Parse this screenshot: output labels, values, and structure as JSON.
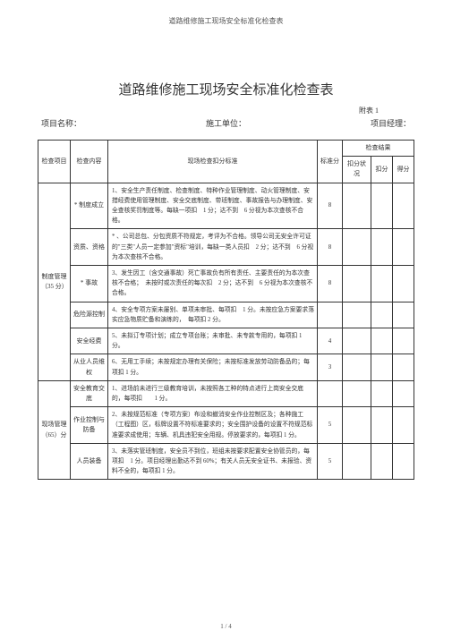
{
  "header_small": "道路维修施工现场安全标准化检查表",
  "main_title": "道路维修施工现场安全标准化检查表",
  "appendix": "附表 1",
  "info": {
    "project_label": "项目名称：",
    "unit_label": "施工单位：",
    "manager_label": "项目经理："
  },
  "thead": {
    "item": "检查项目",
    "content": "检查内容",
    "standard": "现场检查扣分标准",
    "std_score": "标准分",
    "result": "检查结果",
    "status": "扣分状况",
    "deduct": "扣分",
    "get": "得分"
  },
  "section1": {
    "title": "制度管理（35 分）",
    "rows": [
      {
        "content": "*\n制度成立",
        "criteria": "1、安全生产责任制度、检查制度、特种作业管理制度、动火管理制度、安措经费使用管理制度、安全交底制度、带班制度、事故报告与办理制度、安全查核奖罚制度等。每缺一项扣　1 分；达不到　6 分视为本次查核不合格。",
        "score": "8"
      },
      {
        "content": "资质、资格",
        "criteria": "* 、公司总包、分包资质不符规定，考评为不合格。领导公司无安全许可证的\"三类\"人员一定参加\"资标\"培训，每缺一类人员扣　2 分；达不到　6 分视为本次查核不合格。",
        "score": "8"
      },
      {
        "content": "*\n事故",
        "criteria": "3、发生因工（含交通事故）死亡事故负有所有责任、主要责任的为本次查核不合格；　未按时或次责任的每次扣　2 分；达不到　6 分视为本次查核不合格。",
        "score": "8"
      },
      {
        "content": "危险源控制",
        "criteria": "4、安全专项方案未屡别、单项未审批、每项扣　1 分。未按应急方案要求落实应急物质贮备和演练的，　每项扣 2 分。",
        "score": ""
      },
      {
        "content": "安全经费",
        "criteria": "5、未拟订专项计划；成立专项台账；未审批、未专款专用的，每项扣 1 分。",
        "score": "4"
      },
      {
        "content": "从业人员维权",
        "criteria": "6、无用工手续；未按规定办理有关保险；未按标准发放劳动防备品的；每项扣 1 分。",
        "score": "3"
      }
    ]
  },
  "section2": {
    "title": "现场管理（65）分",
    "rows": [
      {
        "content": "安全教育交底",
        "criteria": "1、进场前未进行三级教育培训，未按照各工种的特点进行上岗安全交底的，每项扣　　1 分。",
        "score": ""
      },
      {
        "content": "作业控制与防备",
        "criteria": "2、未按规范标准（专项方案）布设和撤消安全作业控制区及；各种施工（工程图）区，标牌设置不符标准要求的；安全围护设备的设置不符规范标准要求成使用；车辆、机具违犯安全用规。停放要求的，每项扣 1 分。",
        "score": "5"
      },
      {
        "content": "人员装备",
        "criteria": "3、未落实管班制度，安全员不到位，班组未按要求配置安全协管员的，每项扣　1 分。项目经理出勤达不到 60%；有关人员无安全证书、未报验、资料不全的，每项扣 1 分。",
        "score": "5"
      }
    ]
  },
  "pager": "1 / 4"
}
